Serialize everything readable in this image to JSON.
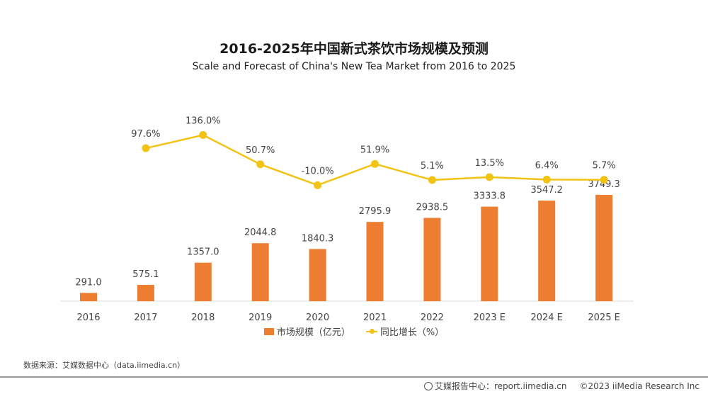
{
  "chart_data": {
    "type": "bar+line",
    "title": "2016-2025年中国新式茶饮市场规模及预测",
    "subtitle": "Scale and Forecast of China's New Tea Market from 2016 to 2025",
    "categories": [
      "2016",
      "2017",
      "2018",
      "2019",
      "2020",
      "2021",
      "2022",
      "2023 E",
      "2024 E",
      "2025 E"
    ],
    "series": [
      {
        "name": "市场规模（亿元）",
        "type": "bar",
        "color": "#ED7D31",
        "values": [
          291.0,
          575.1,
          1357.0,
          2044.8,
          1840.3,
          2795.9,
          2938.5,
          3333.8,
          3547.2,
          3749.3
        ],
        "labels": [
          "291.0",
          "575.1",
          "1357.0",
          "2044.8",
          "1840.3",
          "2795.9",
          "2938.5",
          "3333.8",
          "3547.2",
          "3749.3"
        ]
      },
      {
        "name": "同比增长（%）",
        "type": "line",
        "color": "#F2C315",
        "values": [
          null,
          97.6,
          136.0,
          50.7,
          -10.0,
          51.9,
          5.1,
          13.5,
          6.4,
          5.7
        ],
        "labels": [
          "",
          "97.6%",
          "136.0%",
          "50.7%",
          "-10.0%",
          "51.9%",
          "5.1%",
          "13.5%",
          "6.4%",
          "5.7%"
        ]
      }
    ],
    "ylim": [
      0,
      5000
    ],
    "ylim_right": [
      -200,
      200
    ],
    "grid": false,
    "legend": "bottom"
  },
  "source": "数据来源：艾媒数据中心（data.iimedia.cn）",
  "footer": {
    "report": "艾媒报告中心：report.iimedia.cn",
    "copyright": "©2023  iiMedia Research  Inc"
  }
}
